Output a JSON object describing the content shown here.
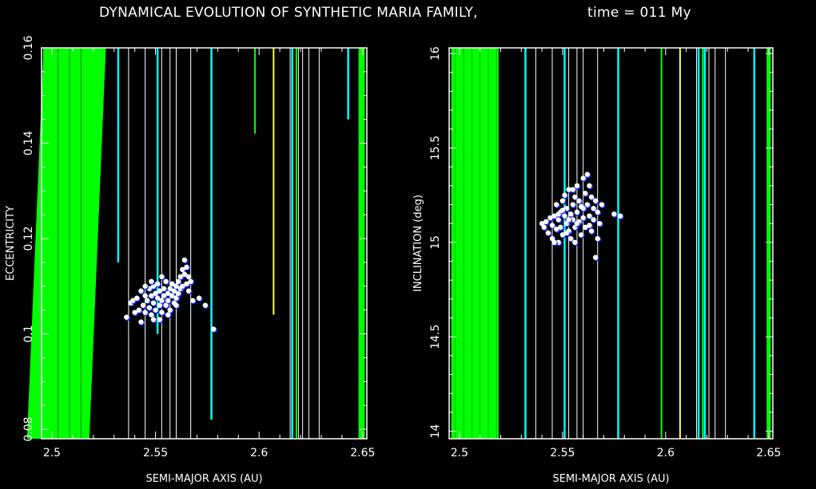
{
  "title": "DYNAMICAL EVOLUTION OF SYNTHETIC MARIA FAMILY,",
  "time_label": "time = 011 My",
  "colors": {
    "background": "#000000",
    "resonance_strong": "#00ff00",
    "resonance_medium": "#00ffff",
    "resonance_weak": "#ffffff",
    "resonance_yellow": "#ffff33",
    "particle": "#ffffff",
    "particle_edge": "#1a2cff"
  },
  "chart_data": [
    {
      "type": "scatter",
      "xlabel": "SEMI-MAJOR AXIS (AU)",
      "ylabel": "ECCENTRICITY",
      "xlim": [
        2.495,
        2.652
      ],
      "ylim": [
        0.078,
        0.16
      ],
      "xticks": [
        "2.5",
        "2.55",
        "2.6",
        "2.65"
      ],
      "yticks": [
        "0.08",
        "0.1",
        "0.12",
        "0.14",
        "0.16"
      ],
      "resonances": [
        {
          "type": "band",
          "x0": 2.496,
          "x1": 2.5,
          "color": "green"
        },
        {
          "type": "wedge",
          "x_top": 2.526,
          "x_bottom": 2.518,
          "color": "green"
        },
        {
          "type": "line",
          "x": 2.532,
          "y_bottom": 0.115,
          "color": "cyan"
        },
        {
          "type": "line",
          "x": 2.537,
          "color": "white"
        },
        {
          "type": "line",
          "x": 2.545,
          "color": "white"
        },
        {
          "type": "line",
          "x": 2.551,
          "y_bottom": 0.1,
          "color": "cyan"
        },
        {
          "type": "line",
          "x": 2.553,
          "color": "white"
        },
        {
          "type": "line",
          "x": 2.557,
          "color": "white"
        },
        {
          "type": "line",
          "x": 2.56,
          "color": "white"
        },
        {
          "type": "line",
          "x": 2.567,
          "color": "white"
        },
        {
          "type": "line",
          "x": 2.577,
          "y_bottom": 0.082,
          "color": "cyan"
        },
        {
          "type": "line",
          "x": 2.598,
          "y_bottom": 0.142,
          "color": "green"
        },
        {
          "type": "line",
          "x": 2.607,
          "y_bottom": 0.104,
          "color": "yellow"
        },
        {
          "type": "line",
          "x": 2.615,
          "color": "white"
        },
        {
          "type": "line",
          "x": 2.616,
          "color": "cyan"
        },
        {
          "type": "line",
          "x": 2.618,
          "color": "green"
        },
        {
          "type": "line",
          "x": 2.619,
          "color": "white"
        },
        {
          "type": "line",
          "x": 2.621,
          "color": "white"
        },
        {
          "type": "line",
          "x": 2.624,
          "color": "white"
        },
        {
          "type": "line",
          "x": 2.629,
          "color": "white"
        },
        {
          "type": "line",
          "x": 2.643,
          "y_bottom": 0.145,
          "color": "cyan"
        },
        {
          "type": "band",
          "x0": 2.648,
          "x1": 2.651,
          "color": "green"
        }
      ],
      "points": [
        [
          2.536,
          0.1035
        ],
        [
          2.538,
          0.1065
        ],
        [
          2.539,
          0.107
        ],
        [
          2.54,
          0.1045
        ],
        [
          2.541,
          0.1075
        ],
        [
          2.542,
          0.105
        ],
        [
          2.543,
          0.1025
        ],
        [
          2.543,
          0.109
        ],
        [
          2.544,
          0.106
        ],
        [
          2.545,
          0.108
        ],
        [
          2.545,
          0.1045
        ],
        [
          2.546,
          0.107
        ],
        [
          2.547,
          0.1095
        ],
        [
          2.547,
          0.1055
        ],
        [
          2.548,
          0.108
        ],
        [
          2.548,
          0.104
        ],
        [
          2.549,
          0.1065
        ],
        [
          2.549,
          0.11
        ],
        [
          2.55,
          0.1085
        ],
        [
          2.55,
          0.105
        ],
        [
          2.551,
          0.1075
        ],
        [
          2.551,
          0.1105
        ],
        [
          2.552,
          0.106
        ],
        [
          2.552,
          0.109
        ],
        [
          2.553,
          0.107
        ],
        [
          2.553,
          0.1045
        ],
        [
          2.554,
          0.1095
        ],
        [
          2.554,
          0.108
        ],
        [
          2.555,
          0.106
        ],
        [
          2.555,
          0.111
        ],
        [
          2.556,
          0.1085
        ],
        [
          2.556,
          0.107
        ],
        [
          2.557,
          0.1095
        ],
        [
          2.557,
          0.105
        ],
        [
          2.558,
          0.108
        ],
        [
          2.558,
          0.1105
        ],
        [
          2.559,
          0.109
        ],
        [
          2.559,
          0.1065
        ],
        [
          2.56,
          0.1075
        ],
        [
          2.56,
          0.11
        ],
        [
          2.561,
          0.1085
        ],
        [
          2.561,
          0.111
        ],
        [
          2.562,
          0.112
        ],
        [
          2.562,
          0.1095
        ],
        [
          2.563,
          0.1135
        ],
        [
          2.563,
          0.11
        ],
        [
          2.564,
          0.1155
        ],
        [
          2.564,
          0.1125
        ],
        [
          2.565,
          0.1105
        ],
        [
          2.565,
          0.114
        ],
        [
          2.566,
          0.109
        ],
        [
          2.566,
          0.112
        ],
        [
          2.567,
          0.111
        ],
        [
          2.568,
          0.107
        ],
        [
          2.571,
          0.1075
        ],
        [
          2.574,
          0.106
        ],
        [
          2.578,
          0.101
        ],
        [
          2.552,
          0.103
        ],
        [
          2.548,
          0.111
        ],
        [
          2.556,
          0.104
        ],
        [
          2.56,
          0.106
        ],
        [
          2.545,
          0.11
        ],
        [
          2.553,
          0.112
        ],
        [
          2.549,
          0.103
        ]
      ]
    },
    {
      "type": "scatter",
      "xlabel": "SEMI-MAJOR AXIS (AU)",
      "ylabel": "INCLINATION (deg)",
      "xlim": [
        2.495,
        2.652
      ],
      "ylim": [
        13.96,
        16.03
      ],
      "xticks": [
        "2.5",
        "2.55",
        "2.6",
        "2.65"
      ],
      "yticks": [
        "14",
        "14.5",
        "15",
        "15.5",
        "16"
      ],
      "resonances": [
        {
          "type": "band",
          "x0": 2.496,
          "x1": 2.519,
          "color": "green"
        },
        {
          "type": "line",
          "x": 2.532,
          "color": "cyan"
        },
        {
          "type": "line",
          "x": 2.537,
          "color": "white"
        },
        {
          "type": "line",
          "x": 2.545,
          "color": "white"
        },
        {
          "type": "line",
          "x": 2.551,
          "color": "cyan"
        },
        {
          "type": "line",
          "x": 2.553,
          "color": "white"
        },
        {
          "type": "line",
          "x": 2.557,
          "color": "white"
        },
        {
          "type": "line",
          "x": 2.56,
          "color": "white"
        },
        {
          "type": "line",
          "x": 2.567,
          "color": "white"
        },
        {
          "type": "line",
          "x": 2.577,
          "color": "cyan"
        },
        {
          "type": "line",
          "x": 2.598,
          "color": "green"
        },
        {
          "type": "line",
          "x": 2.607,
          "color": "yellow"
        },
        {
          "type": "line",
          "x": 2.615,
          "color": "white"
        },
        {
          "type": "line",
          "x": 2.616,
          "color": "cyan"
        },
        {
          "type": "line",
          "x": 2.618,
          "color": "green"
        },
        {
          "type": "line",
          "x": 2.619,
          "color": "cyan"
        },
        {
          "type": "line",
          "x": 2.621,
          "color": "white"
        },
        {
          "type": "line",
          "x": 2.624,
          "color": "white"
        },
        {
          "type": "line",
          "x": 2.629,
          "color": "white"
        },
        {
          "type": "line",
          "x": 2.643,
          "color": "cyan"
        },
        {
          "type": "band",
          "x0": 2.649,
          "x1": 2.651,
          "color": "green"
        }
      ],
      "points": [
        [
          2.54,
          15.1
        ],
        [
          2.541,
          15.08
        ],
        [
          2.542,
          15.11
        ],
        [
          2.543,
          15.05
        ],
        [
          2.544,
          15.13
        ],
        [
          2.545,
          15.02
        ],
        [
          2.545,
          15.09
        ],
        [
          2.546,
          15.14
        ],
        [
          2.547,
          15.07
        ],
        [
          2.547,
          15.2
        ],
        [
          2.548,
          15.12
        ],
        [
          2.548,
          15.0
        ],
        [
          2.549,
          15.16
        ],
        [
          2.549,
          15.08
        ],
        [
          2.55,
          15.22
        ],
        [
          2.55,
          15.04
        ],
        [
          2.551,
          15.14
        ],
        [
          2.551,
          15.25
        ],
        [
          2.552,
          15.1
        ],
        [
          2.552,
          15.18
        ],
        [
          2.553,
          15.06
        ],
        [
          2.553,
          15.28
        ],
        [
          2.554,
          15.15
        ],
        [
          2.554,
          15.02
        ],
        [
          2.555,
          15.2
        ],
        [
          2.555,
          15.12
        ],
        [
          2.556,
          15.24
        ],
        [
          2.556,
          15.08
        ],
        [
          2.557,
          15.16
        ],
        [
          2.557,
          15.3
        ],
        [
          2.558,
          15.11
        ],
        [
          2.558,
          15.22
        ],
        [
          2.559,
          15.04
        ],
        [
          2.559,
          15.19
        ],
        [
          2.56,
          15.34
        ],
        [
          2.56,
          15.13
        ],
        [
          2.561,
          15.26
        ],
        [
          2.561,
          15.08
        ],
        [
          2.562,
          15.36
        ],
        [
          2.562,
          15.2
        ],
        [
          2.563,
          15.14
        ],
        [
          2.563,
          15.3
        ],
        [
          2.564,
          15.24
        ],
        [
          2.564,
          15.06
        ],
        [
          2.565,
          15.18
        ],
        [
          2.565,
          15.12
        ],
        [
          2.566,
          14.92
        ],
        [
          2.566,
          15.22
        ],
        [
          2.567,
          15.16
        ],
        [
          2.567,
          15.02
        ],
        [
          2.568,
          15.1
        ],
        [
          2.569,
          15.2
        ],
        [
          2.575,
          15.15
        ],
        [
          2.578,
          15.14
        ],
        [
          2.553,
          15.12
        ],
        [
          2.557,
          15.1
        ],
        [
          2.548,
          15.15
        ],
        [
          2.552,
          15.05
        ],
        [
          2.556,
          15.0
        ],
        [
          2.56,
          15.18
        ],
        [
          2.563,
          15.09
        ],
        [
          2.546,
          15.0
        ],
        [
          2.55,
          15.17
        ],
        [
          2.555,
          15.28
        ]
      ]
    }
  ]
}
